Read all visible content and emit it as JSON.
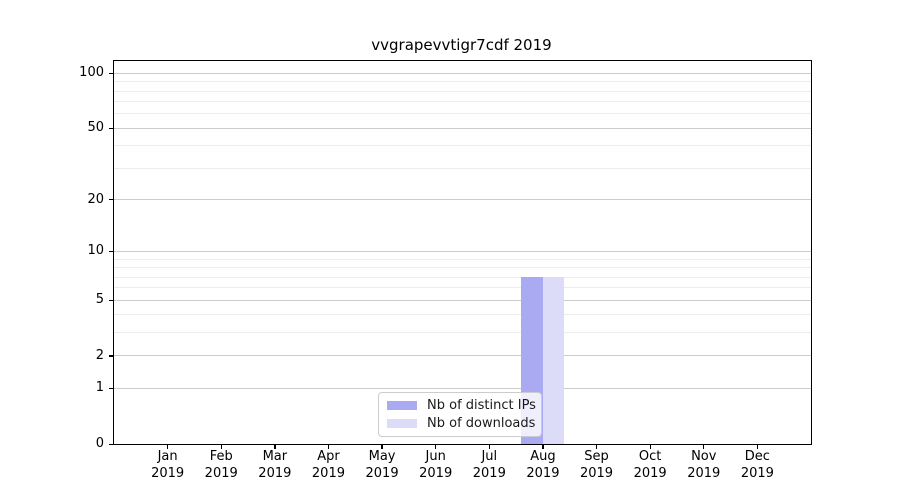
{
  "chart_data": {
    "type": "bar",
    "title": "vvgrapevvtigr7cdf 2019",
    "scale": "log1p",
    "months": [
      "Jan",
      "Feb",
      "Mar",
      "Apr",
      "May",
      "Jun",
      "Jul",
      "Aug",
      "Sep",
      "Oct",
      "Nov",
      "Dec"
    ],
    "year_label": "2019",
    "series": [
      {
        "name": "Nb of distinct IPs",
        "color": "#a9aaf2",
        "values": [
          0,
          0,
          0,
          0,
          0,
          0,
          0,
          7,
          0,
          0,
          0,
          0
        ]
      },
      {
        "name": "Nb of downloads",
        "color": "#dcdcf8",
        "values": [
          0,
          0,
          0,
          0,
          0,
          0,
          0,
          7,
          0,
          0,
          0,
          0
        ]
      }
    ],
    "y_ticks": [
      0,
      1,
      2,
      5,
      10,
      20,
      50,
      100
    ],
    "y_minor_ticks": [
      3,
      4,
      6,
      7,
      8,
      9,
      30,
      40,
      60,
      70,
      80,
      90
    ],
    "ylim": [
      0,
      117
    ],
    "grid": "horizontal",
    "legend_position": "lower center",
    "colors": {
      "axis": "#000000",
      "grid_major": "#cbcbcb",
      "grid_minor": "#ececec",
      "legend_border": "#cccccc"
    }
  }
}
